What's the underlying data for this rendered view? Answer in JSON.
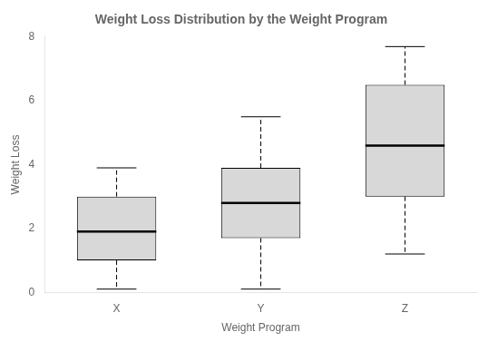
{
  "chart_data": {
    "type": "box",
    "title": "Weight Loss Distribution by the Weight Program",
    "xlabel": "Weight Program",
    "ylabel": "Weight Loss",
    "categories": [
      "X",
      "Y",
      "Z"
    ],
    "values": [
      {
        "whislo": 0.1,
        "q1": 1.0,
        "med": 1.9,
        "q3": 3.0,
        "whishi": 3.9
      },
      {
        "whislo": 0.1,
        "q1": 1.7,
        "med": 2.8,
        "q3": 3.9,
        "whishi": 5.5
      },
      {
        "whislo": 1.2,
        "q1": 3.0,
        "med": 4.6,
        "q3": 6.5,
        "whishi": 7.7
      }
    ],
    "color": "#d8d8d8",
    "ylim": [
      0,
      8
    ],
    "yticks": [
      0,
      2,
      4,
      6,
      8
    ],
    "grid": false
  }
}
